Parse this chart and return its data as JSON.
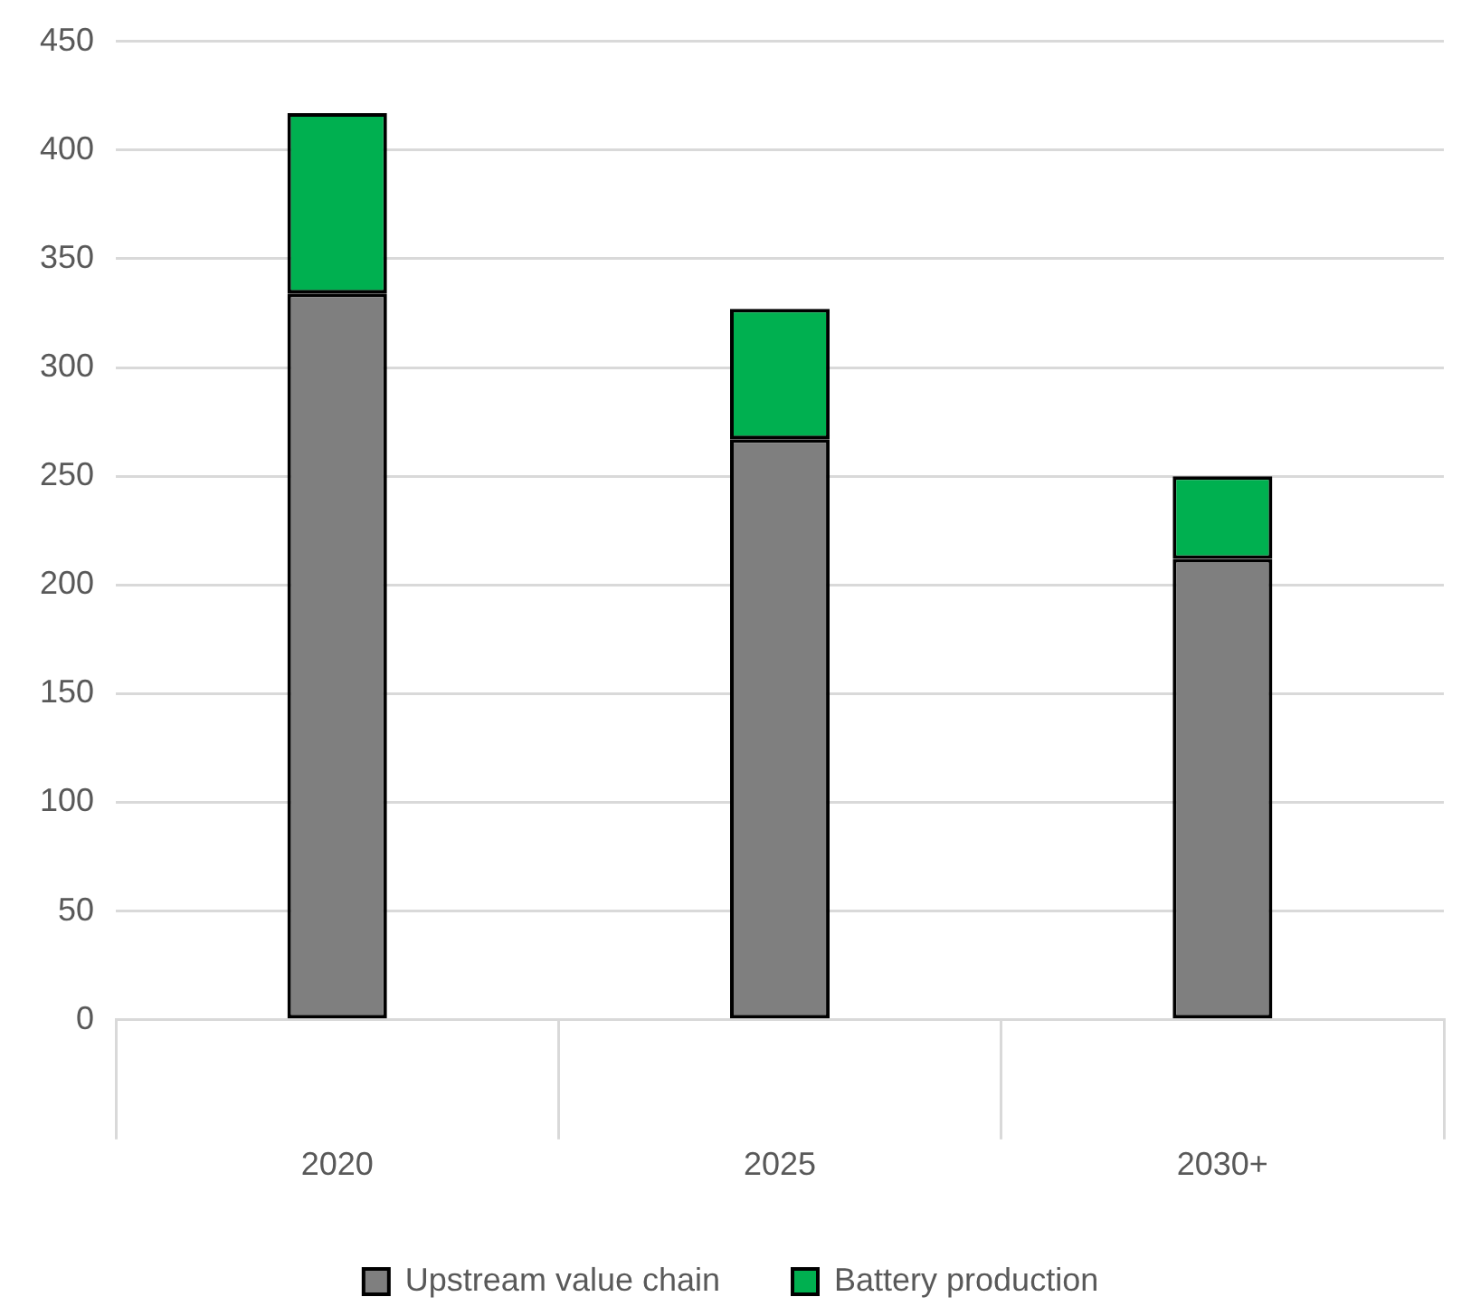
{
  "chart_data": {
    "type": "bar",
    "stacked": true,
    "categories": [
      "2020",
      "2025",
      "2030+"
    ],
    "series": [
      {
        "name": "Upstream value chain",
        "color": "#7f7f7f",
        "values": [
          334,
          267,
          212
        ]
      },
      {
        "name": "Battery production",
        "color": "#00b050",
        "values": [
          83,
          60,
          38
        ]
      }
    ],
    "ylim": [
      0,
      450
    ],
    "yticks": [
      0,
      50,
      100,
      150,
      200,
      250,
      300,
      350,
      400,
      450
    ],
    "grid": "y",
    "legend": "bottom"
  }
}
